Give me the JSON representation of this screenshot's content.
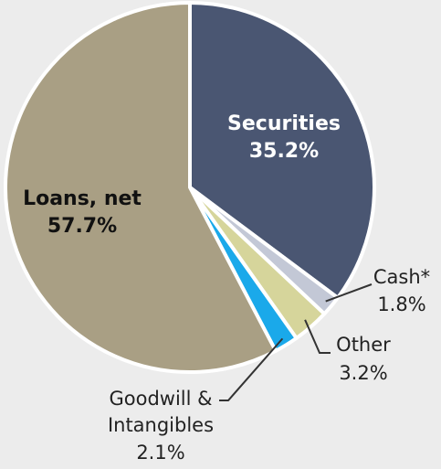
{
  "chart_data": {
    "type": "pie",
    "title": "",
    "slices": [
      {
        "label": "Securities",
        "value": 35.2,
        "display": "35.2%",
        "color": "#4a5672"
      },
      {
        "label": "Cash*",
        "value": 1.8,
        "display": "1.8%",
        "color": "#c3c8d6"
      },
      {
        "label": "Other",
        "value": 3.2,
        "display": "3.2%",
        "color": "#d6d59b"
      },
      {
        "label": "Goodwill & Intangibles",
        "value": 2.1,
        "display": "2.1%",
        "color": "#1aa9ea"
      },
      {
        "label": "Loans, net",
        "value": 57.7,
        "display": "57.7%",
        "color": "#a99f84"
      }
    ]
  }
}
